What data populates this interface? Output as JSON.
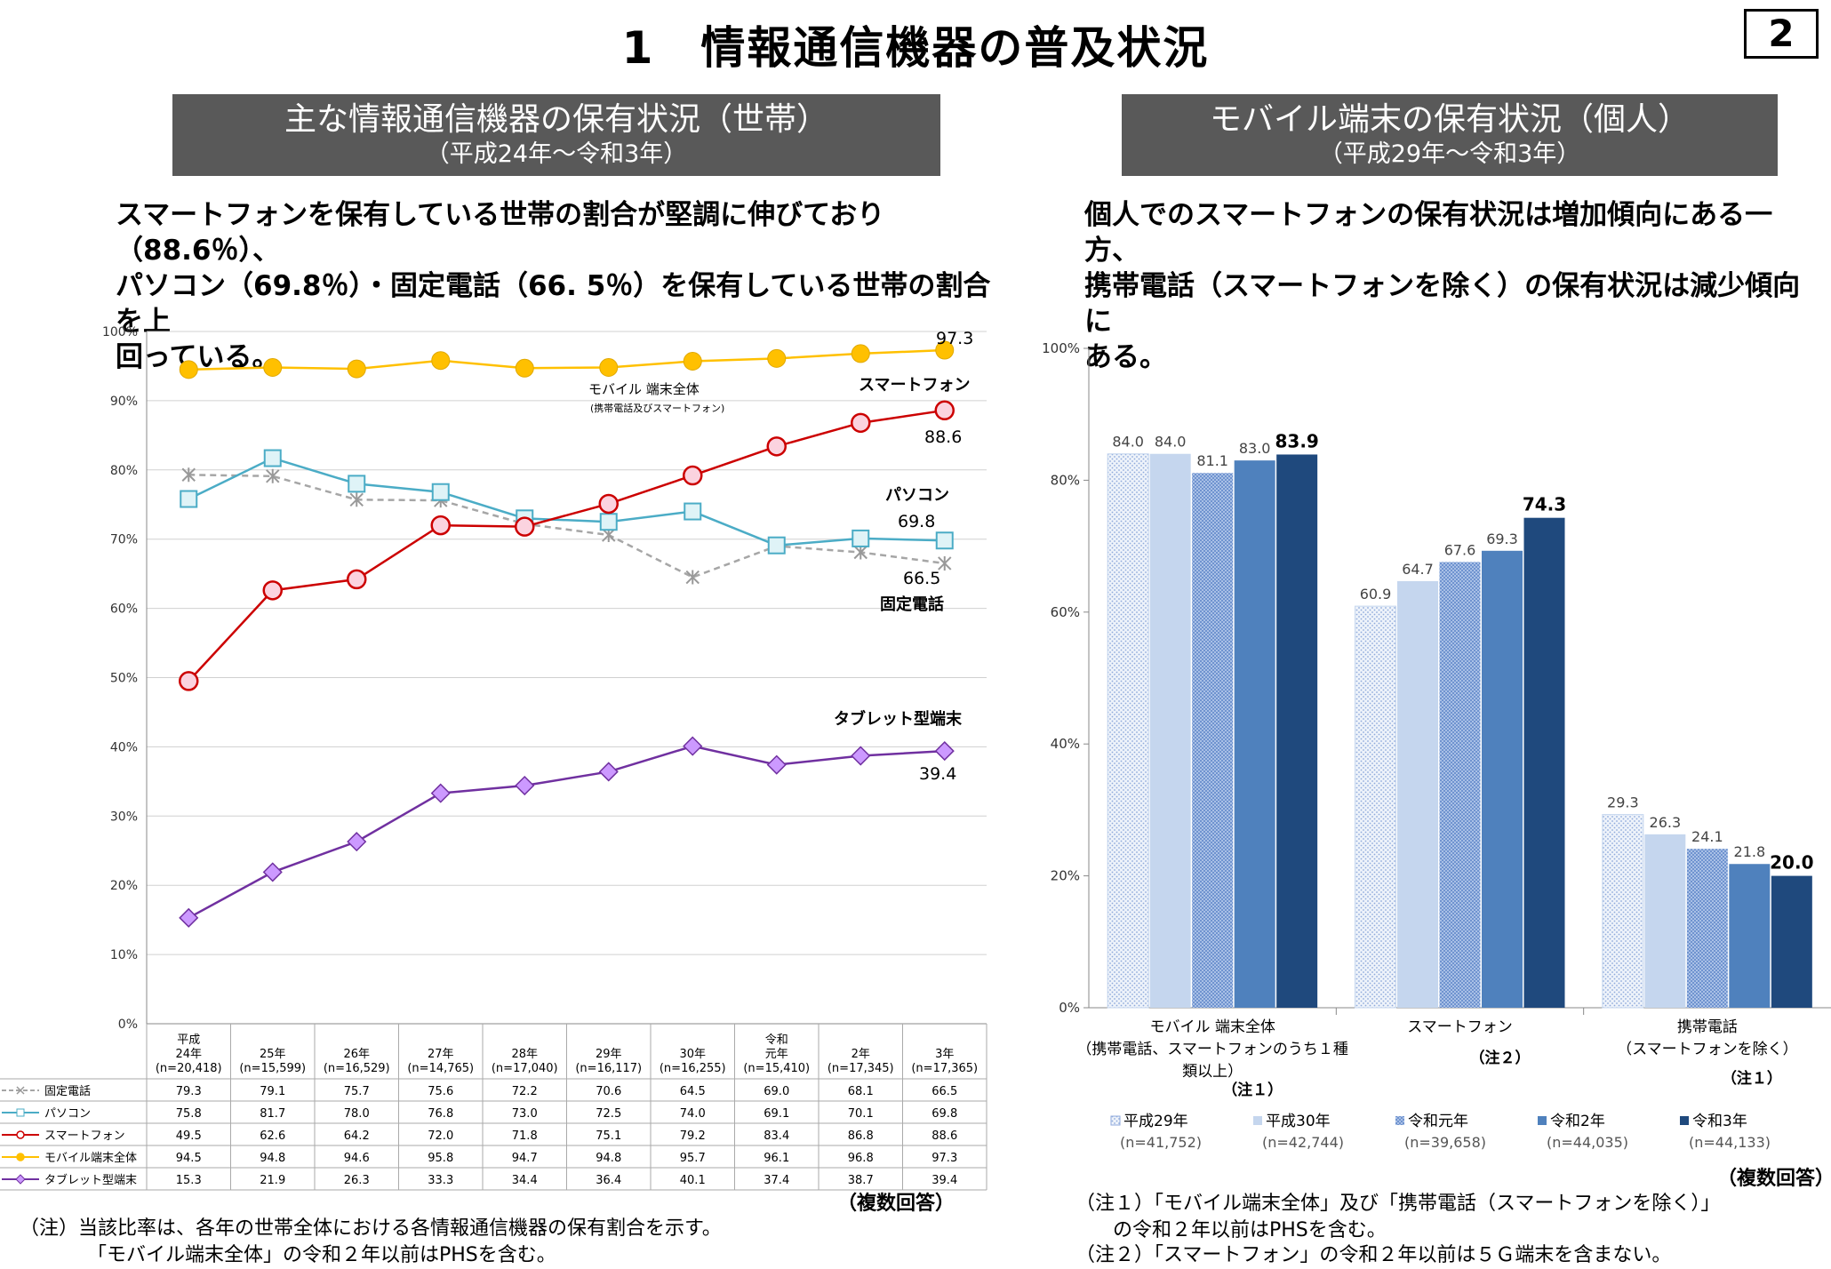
{
  "header": {
    "title": "1　情報通信機器の普及状況",
    "page_number": "2"
  },
  "left_panel": {
    "banner_title": "主な情報通信機器の保有状況（世帯）",
    "banner_sub": "（平成24年～令和3年）",
    "summary": [
      "スマートフォンを保有している世帯の割合が堅調に伸びており（88.6％）、",
      "パソコン（69.8％）・固定電話（66. 5％）を保有している世帯の割合を上",
      "回っている。"
    ],
    "note_multi": "（複数回答）",
    "footnote": [
      "（注）当該比率は、各年の世帯全体における各情報通信機器の保有割合を示す。",
      "「モバイル端末全体」の令和２年以前はPHSを含む。"
    ]
  },
  "right_panel": {
    "banner_title": "モバイル端末の保有状況（個人）",
    "banner_sub": "（平成29年～令和3年）",
    "summary": [
      "個人でのスマートフォンの保有状況は増加傾向にある一方、",
      "携帯電話（スマートフォンを除く）の保有状況は減少傾向に",
      "ある。"
    ],
    "note_multi": "（複数回答）",
    "footnote": [
      "（注１）「モバイル端末全体」及び「携帯電話（スマートフォンを除く）」",
      "の令和２年以前はPHSを含む。",
      "（注２）「スマートフォン」の令和２年以前は５Ｇ端末を含まない。"
    ]
  },
  "chart_data": [
    {
      "type": "line",
      "ylim": [
        0,
        100
      ],
      "yticks": [
        "0%",
        "10%",
        "20%",
        "30%",
        "40%",
        "50%",
        "60%",
        "70%",
        "80%",
        "90%",
        "100%"
      ],
      "categories": [
        [
          "平成",
          "24年",
          "(n=20,418)"
        ],
        [
          "25年",
          "(n=15,599)"
        ],
        [
          "26年",
          "(n=16,529)"
        ],
        [
          "27年",
          "(n=14,765)"
        ],
        [
          "28年",
          "(n=17,040)"
        ],
        [
          "29年",
          "(n=16,117)"
        ],
        [
          "30年",
          "(n=16,255)"
        ],
        [
          "令和",
          "元年",
          "(n=15,410)"
        ],
        [
          "2年",
          "(n=17,345)"
        ],
        [
          "3年",
          "(n=17,365)"
        ]
      ],
      "series": [
        {
          "name": "固定電話",
          "color": "#a6a6a6",
          "marker": "x",
          "dashed": true,
          "values": [
            79.3,
            79.1,
            75.7,
            75.6,
            72.2,
            70.6,
            64.5,
            69.0,
            68.1,
            66.5
          ],
          "labels": [
            "79.3",
            "79.1",
            "75.7",
            "75.6",
            "72.2",
            "70.6",
            "64.5",
            "69.0",
            "68.1",
            "66.5"
          ]
        },
        {
          "name": "パソコン",
          "color": "#4bacc6",
          "marker": "square",
          "dashed": false,
          "values": [
            75.8,
            81.7,
            78.0,
            76.8,
            73.0,
            72.5,
            74.0,
            69.1,
            70.1,
            69.8
          ],
          "labels": [
            "75.8",
            "81.7",
            "78.0",
            "76.8",
            "73.0",
            "72.5",
            "74.0",
            "69.1",
            "70.1",
            "69.8"
          ]
        },
        {
          "name": "スマートフォン",
          "color": "#cc0000",
          "marker": "circle",
          "dashed": false,
          "values": [
            49.5,
            62.6,
            64.2,
            72.0,
            71.8,
            75.1,
            79.2,
            83.4,
            86.8,
            88.6
          ],
          "labels": [
            "49.5",
            "62.6",
            "64.2",
            "72.0",
            "71.8",
            "75.1",
            "79.2",
            "83.4",
            "86.8",
            "88.6"
          ]
        },
        {
          "name": "モバイル端末全体",
          "color": "#ffc000",
          "marker": "dot",
          "dashed": false,
          "values": [
            94.5,
            94.8,
            94.6,
            95.8,
            94.7,
            94.8,
            95.7,
            96.1,
            96.8,
            97.3
          ],
          "labels": [
            "94.5",
            "94.8",
            "94.6",
            "95.8",
            "94.7",
            "94.8",
            "95.7",
            "96.1",
            "96.8",
            "97.3"
          ]
        },
        {
          "name": "タブレット型端末",
          "color": "#7030a0",
          "marker": "diamond",
          "dashed": false,
          "values": [
            15.3,
            21.9,
            26.3,
            33.3,
            34.4,
            36.4,
            40.1,
            37.4,
            38.7,
            39.4
          ],
          "labels": [
            "15.3",
            "21.9",
            "26.3",
            "33.3",
            "34.4",
            "36.4",
            "40.1",
            "37.4",
            "38.7",
            "39.4"
          ]
        }
      ],
      "annotations": {
        "mobile_label": "モバイル 端末全体",
        "mobile_sub": "(携帯電話及びスマートフォン)",
        "mobile_end": "97.3",
        "smartphone_label": "スマートフォン",
        "smartphone_end": "88.6",
        "pc_label": "パソコン",
        "pc_end": "69.8",
        "fixed_end": "66.5",
        "fixed_label": "固定電話",
        "tablet_label": "タブレット型端末",
        "tablet_end": "39.4"
      }
    },
    {
      "type": "bar",
      "ylim": [
        0,
        100
      ],
      "yticks": [
        "0%",
        "20%",
        "40%",
        "60%",
        "80%",
        "100%"
      ],
      "categories": [
        {
          "lines": [
            "モバイル 端末全体",
            "（携帯電話、スマートフォンのうち１種",
            "類以上）"
          ],
          "note": "（注１）"
        },
        {
          "lines": [
            "スマートフォン"
          ],
          "note": "（注２）"
        },
        {
          "lines": [
            "携帯電話",
            "（スマートフォンを除く）"
          ],
          "note": "（注１）"
        }
      ],
      "series": [
        {
          "name": "平成29年",
          "n": "(n=41,752)",
          "color": "#e3ecf7",
          "pattern": "dots",
          "values": [
            84.0,
            60.9,
            29.3
          ],
          "labels": [
            "84.0",
            "60.9",
            "29.3"
          ]
        },
        {
          "name": "平成30年",
          "n": "(n=42,744)",
          "color": "#c5d6ee",
          "pattern": "none",
          "values": [
            84.0,
            64.7,
            26.3
          ],
          "labels": [
            "84.0",
            "64.7",
            "26.3"
          ]
        },
        {
          "name": "令和元年",
          "n": "(n=39,658)",
          "color": "#8faedc",
          "pattern": "dense",
          "values": [
            81.1,
            67.6,
            24.1
          ],
          "labels": [
            "81.1",
            "67.6",
            "24.1"
          ]
        },
        {
          "name": "令和2年",
          "n": "(n=44,035)",
          "color": "#4f81bd",
          "pattern": "none",
          "values": [
            83.0,
            69.3,
            21.8
          ],
          "labels": [
            "83.0",
            "69.3",
            "21.8"
          ]
        },
        {
          "name": "令和3年",
          "n": "(n=44,133)",
          "color": "#1f497d",
          "pattern": "none",
          "values": [
            83.9,
            74.3,
            20.0
          ],
          "labels": [
            "83.9",
            "74.3",
            "20.0"
          ]
        }
      ]
    }
  ]
}
